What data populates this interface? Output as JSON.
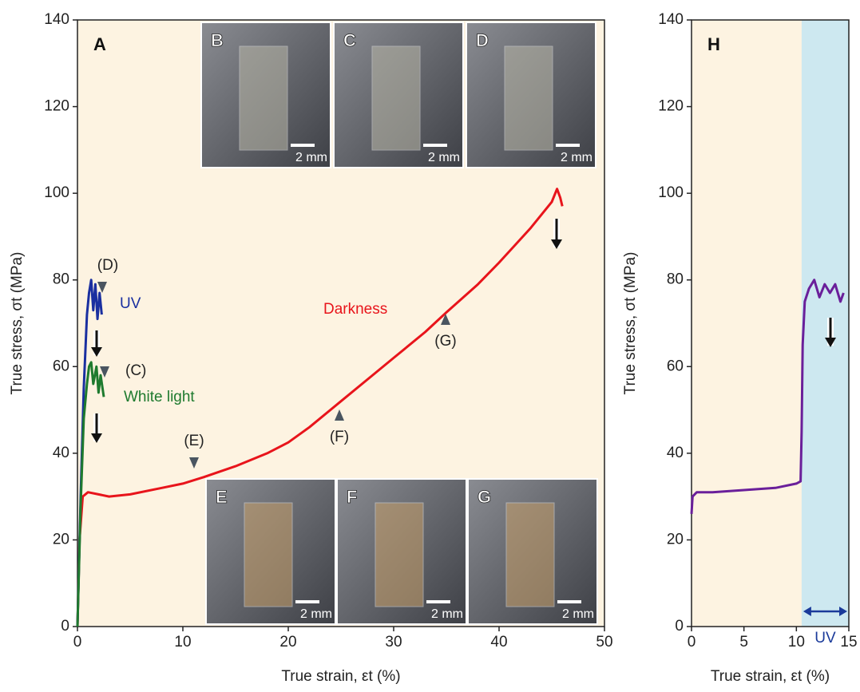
{
  "chart_data": [
    {
      "type": "line",
      "panel_label": "A",
      "xlabel": "True strain, εt (%)",
      "ylabel": "True stress, σt (MPa)",
      "xlim": [
        0,
        50
      ],
      "ylim": [
        0,
        140
      ],
      "xticks": [
        0,
        10,
        20,
        30,
        40,
        50
      ],
      "yticks": [
        0,
        20,
        40,
        60,
        80,
        100,
        120,
        140
      ],
      "background": "#fdf3e1",
      "series": [
        {
          "name": "Darkness",
          "color": "#e8141b",
          "x": [
            0,
            0.2,
            0.5,
            1,
            2,
            3,
            5,
            8,
            10,
            12,
            15,
            18,
            20,
            22,
            25,
            28,
            30,
            33,
            35,
            38,
            40,
            43,
            45,
            45.5,
            45.8,
            46
          ],
          "values": [
            0,
            20,
            30,
            31,
            30.5,
            30,
            30.5,
            32,
            33,
            34.5,
            37,
            40,
            42.5,
            46,
            52,
            58,
            62,
            68,
            72.5,
            79,
            84,
            92,
            98,
            101,
            99,
            97
          ]
        },
        {
          "name": "UV",
          "color": "#1a2fa0",
          "x": [
            0,
            0.3,
            0.6,
            0.9,
            1.1,
            1.3,
            1.5,
            1.7,
            1.9,
            2.1,
            2.3
          ],
          "values": [
            0,
            30,
            55,
            72,
            77,
            80,
            73,
            79,
            71,
            77,
            72
          ]
        },
        {
          "name": "White light",
          "color": "#1e7a2e",
          "x": [
            0,
            0.3,
            0.6,
            0.9,
            1.1,
            1.3,
            1.5,
            1.8,
            2.0,
            2.2,
            2.5
          ],
          "values": [
            0,
            28,
            48,
            56,
            60,
            61,
            56,
            60,
            54,
            58,
            53
          ]
        }
      ],
      "markers": [
        "(D)",
        "(C)",
        "(E)",
        "(F)",
        "(G)"
      ],
      "insets": [
        {
          "label": "B",
          "scale": "2 mm"
        },
        {
          "label": "C",
          "scale": "2 mm"
        },
        {
          "label": "D",
          "scale": "2 mm"
        },
        {
          "label": "E",
          "scale": "2 mm"
        },
        {
          "label": "F",
          "scale": "2 mm"
        },
        {
          "label": "G",
          "scale": "2 mm"
        }
      ]
    },
    {
      "type": "line",
      "panel_label": "H",
      "xlabel": "True strain, εt (%)",
      "ylabel": "True stress, σt (MPa)",
      "xlim": [
        0,
        15
      ],
      "ylim": [
        0,
        140
      ],
      "xticks": [
        0,
        5,
        10,
        15
      ],
      "yticks": [
        0,
        20,
        40,
        60,
        80,
        100,
        120,
        140
      ],
      "background": "#fdf3e1",
      "shaded_region": {
        "xlim": [
          10.5,
          15
        ],
        "label": "UV",
        "color": "#cde8f0"
      },
      "series": [
        {
          "color": "#6a1f9a",
          "x": [
            0,
            0.1,
            0.5,
            2,
            5,
            8,
            10,
            10.4,
            10.5,
            10.6,
            10.8,
            11.2,
            11.7,
            12.2,
            12.7,
            13.2,
            13.7,
            14.2,
            14.5
          ],
          "values": [
            26,
            30,
            31,
            31,
            31.5,
            32,
            33,
            33.5,
            45,
            65,
            75,
            78,
            80,
            76,
            79,
            77,
            79,
            75,
            77
          ]
        }
      ]
    }
  ]
}
